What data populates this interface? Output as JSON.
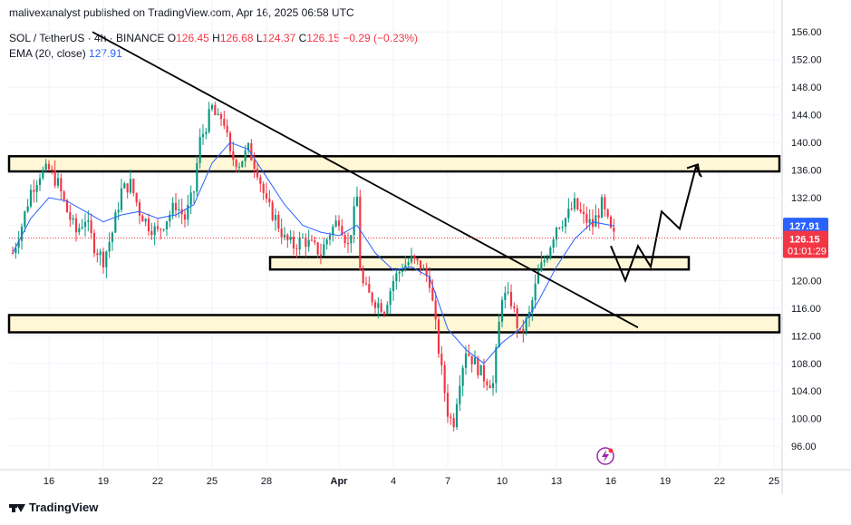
{
  "header": {
    "publisher": "malivexanalyst published on TradingView.com, Apr 16, 2025 06:58 UTC"
  },
  "legend": {
    "symbol": "SOL / TetherUS · 4h · BINANCE",
    "o_label": "O",
    "o": "126.45",
    "h_label": "H",
    "h": "126.68",
    "l_label": "L",
    "l": "124.37",
    "c_label": "C",
    "c": "126.15",
    "change": "−0.29 (−0.23%)",
    "ema_label": "EMA (20, close)",
    "ema": "127.91"
  },
  "footer": {
    "brand": "TradingView"
  },
  "colors": {
    "up": "#089981",
    "down": "#f23645",
    "ema": "#2962ff",
    "zone_fill": "#fff7d6",
    "zone_border": "#000000"
  },
  "chart_data": {
    "type": "candlestick",
    "ylim": [
      93,
      158
    ],
    "y_ticks": [
      "156.00",
      "152.00",
      "148.00",
      "144.00",
      "140.00",
      "136.00",
      "132.00",
      "128.00",
      "124.00",
      "120.00",
      "116.00",
      "112.00",
      "108.00",
      "104.00",
      "100.00",
      "96.00"
    ],
    "x_ticks": [
      "16",
      "19",
      "22",
      "25",
      "28",
      "Apr",
      "4",
      "7",
      "10",
      "13",
      "16",
      "19",
      "22",
      "25"
    ],
    "x_tick_days": [
      16,
      19,
      22,
      25,
      28,
      32,
      35,
      38,
      41,
      44,
      47,
      50,
      53,
      56
    ],
    "price_badge": {
      "value": "126.15",
      "countdown": "01:01:29"
    },
    "ema_badge": "127.91",
    "close_path": [
      [
        14.0,
        124
      ],
      [
        14.5,
        128
      ],
      [
        15.0,
        133
      ],
      [
        15.5,
        135.5
      ],
      [
        16.0,
        136
      ],
      [
        16.5,
        134
      ],
      [
        17.0,
        130
      ],
      [
        17.5,
        127
      ],
      [
        18.0,
        129
      ],
      [
        18.5,
        125
      ],
      [
        19.0,
        123
      ],
      [
        19.5,
        127
      ],
      [
        20.0,
        133
      ],
      [
        20.5,
        134
      ],
      [
        21.0,
        130
      ],
      [
        21.5,
        128
      ],
      [
        22.0,
        127
      ],
      [
        22.5,
        129
      ],
      [
        23.0,
        131
      ],
      [
        23.5,
        129
      ],
      [
        24.0,
        133
      ],
      [
        24.3,
        140
      ],
      [
        24.6,
        142
      ],
      [
        25.0,
        145
      ],
      [
        25.3,
        143
      ],
      [
        25.6,
        144
      ],
      [
        26.0,
        138
      ],
      [
        26.5,
        137
      ],
      [
        27.0,
        139
      ],
      [
        27.5,
        136
      ],
      [
        28.0,
        131
      ],
      [
        28.5,
        129
      ],
      [
        29.0,
        126
      ],
      [
        29.5,
        125
      ],
      [
        30.0,
        126
      ],
      [
        30.5,
        125
      ],
      [
        31.0,
        124
      ],
      [
        31.5,
        127
      ],
      [
        32.0,
        129
      ],
      [
        32.5,
        125
      ],
      [
        33.0,
        132
      ],
      [
        33.2,
        120
      ],
      [
        33.6,
        118
      ],
      [
        34.0,
        117
      ],
      [
        34.5,
        116
      ],
      [
        35.0,
        120
      ],
      [
        35.5,
        122
      ],
      [
        36.0,
        123
      ],
      [
        36.5,
        122
      ],
      [
        37.0,
        120
      ],
      [
        37.3,
        114
      ],
      [
        37.6,
        108
      ],
      [
        38.0,
        101
      ],
      [
        38.3,
        99
      ],
      [
        38.6,
        105
      ],
      [
        39.0,
        110
      ],
      [
        39.5,
        108
      ],
      [
        40.0,
        106
      ],
      [
        40.5,
        105
      ],
      [
        41.0,
        118
      ],
      [
        41.5,
        117
      ],
      [
        42.0,
        112
      ],
      [
        42.5,
        115
      ],
      [
        43.0,
        121
      ],
      [
        43.5,
        124
      ],
      [
        44.0,
        128
      ],
      [
        44.5,
        129
      ],
      [
        45.0,
        131
      ],
      [
        45.5,
        129
      ],
      [
        46.0,
        128
      ],
      [
        46.5,
        131
      ],
      [
        47.0,
        127
      ],
      [
        47.2,
        126.15
      ]
    ],
    "ema_path": [
      [
        14.0,
        124
      ],
      [
        15.0,
        129
      ],
      [
        16.0,
        132
      ],
      [
        17.0,
        131.5
      ],
      [
        18.0,
        130
      ],
      [
        19.0,
        128.5
      ],
      [
        20.0,
        129.5
      ],
      [
        21.0,
        130
      ],
      [
        22.0,
        129
      ],
      [
        23.0,
        129.5
      ],
      [
        24.0,
        131
      ],
      [
        25.0,
        137
      ],
      [
        26.0,
        140
      ],
      [
        27.0,
        139
      ],
      [
        28.0,
        135
      ],
      [
        29.0,
        131
      ],
      [
        30.0,
        128
      ],
      [
        31.0,
        127
      ],
      [
        32.0,
        126.5
      ],
      [
        33.0,
        128
      ],
      [
        34.0,
        124
      ],
      [
        35.0,
        121.5
      ],
      [
        36.0,
        122
      ],
      [
        37.0,
        120.5
      ],
      [
        38.0,
        113
      ],
      [
        39.0,
        110
      ],
      [
        40.0,
        108
      ],
      [
        41.0,
        111
      ],
      [
        42.0,
        113
      ],
      [
        43.0,
        117
      ],
      [
        44.0,
        122
      ],
      [
        45.0,
        126
      ],
      [
        46.0,
        128.5
      ],
      [
        47.0,
        128
      ],
      [
        47.2,
        127.91
      ]
    ],
    "annotations": {
      "zones": [
        {
          "from": 13.8,
          "to": 56.3,
          "low": 135.8,
          "high": 138.0
        },
        {
          "from": 28.2,
          "to": 51.3,
          "low": 121.6,
          "high": 123.4
        },
        {
          "from": 13.8,
          "to": 56.3,
          "low": 112.5,
          "high": 115.0
        }
      ],
      "trendline": [
        [
          18.4,
          156.0
        ],
        [
          48.5,
          113.2
        ]
      ],
      "projection": [
        [
          47.0,
          125.0
        ],
        [
          47.8,
          120.0
        ],
        [
          48.5,
          125.0
        ],
        [
          49.2,
          122.0
        ],
        [
          49.8,
          130.0
        ],
        [
          50.8,
          127.5
        ],
        [
          51.7,
          136.5
        ],
        [
          52.0,
          135.0
        ]
      ],
      "arrow_tip": [
        51.8,
        136.8
      ]
    }
  }
}
